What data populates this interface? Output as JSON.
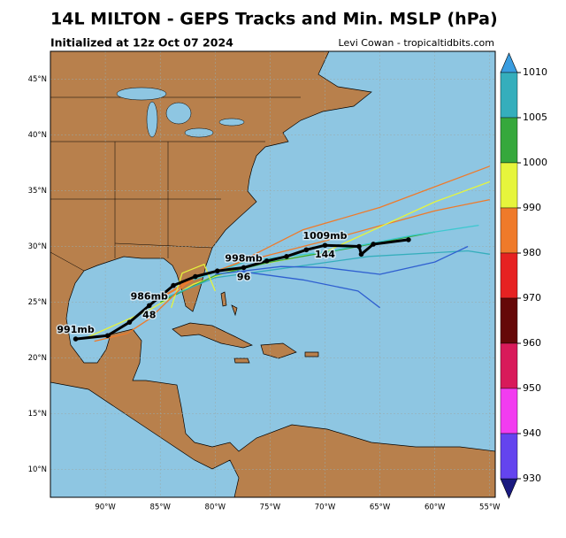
{
  "map": {
    "title": "14L MILTON - GEPS Tracks and Min. MSLP (hPa)",
    "subtitle": "Initialized at 12z Oct 07 2024",
    "credit": "Levi Cowan - tropicaltidbits.com",
    "lonlim": [
      -95,
      -54.5
    ],
    "latlim": [
      7.5,
      47.5
    ],
    "lat_ticks": [
      {
        "value": 10,
        "label": "10°N"
      },
      {
        "value": 15,
        "label": "15°N"
      },
      {
        "value": 20,
        "label": "20°N"
      },
      {
        "value": 25,
        "label": "25°N"
      },
      {
        "value": 30,
        "label": "30°N"
      },
      {
        "value": 35,
        "label": "35°N"
      },
      {
        "value": 40,
        "label": "40°N"
      },
      {
        "value": 45,
        "label": "45°N"
      }
    ],
    "lon_ticks": [
      {
        "value": -90,
        "label": "90°W"
      },
      {
        "value": -85,
        "label": "85°W"
      },
      {
        "value": -80,
        "label": "80°W"
      },
      {
        "value": -75,
        "label": "75°W"
      },
      {
        "value": -70,
        "label": "70°W"
      },
      {
        "value": -65,
        "label": "65°W"
      },
      {
        "value": -60,
        "label": "60°W"
      },
      {
        "value": -55,
        "label": "55°W"
      }
    ],
    "colorbar": {
      "ticks": [
        1010,
        1005,
        1000,
        990,
        980,
        970,
        960,
        950,
        940,
        930
      ],
      "band_colors": [
        "#35aebc",
        "#36a83c",
        "#e6f53c",
        "#ef7a2a",
        "#e62222",
        "#650808",
        "#d81a5a",
        "#f23cf0",
        "#6444ee"
      ]
    },
    "tracks": [
      {
        "color": "#ef7a2a",
        "lon": [
          -86,
          -82,
          -78,
          -72,
          -65,
          -55
        ],
        "lat": [
          24.8,
          27,
          28.5,
          31.5,
          33.5,
          37.2
        ]
      },
      {
        "color": "#ef7a2a",
        "lon": [
          -86,
          -82,
          -76,
          -70,
          -60,
          -55
        ],
        "lat": [
          24.8,
          27.2,
          29,
          30.5,
          33.2,
          34.2
        ]
      },
      {
        "color": "#e6f53c",
        "lon": [
          -92,
          -86,
          -82,
          -78,
          -70,
          -60,
          -55
        ],
        "lat": [
          21.7,
          24.3,
          26.6,
          28,
          29.5,
          34,
          35.8
        ]
      },
      {
        "color": "#36a83c",
        "lon": [
          -85,
          -80,
          -75,
          -68,
          -60
        ],
        "lat": [
          25,
          27.4,
          28.6,
          29.8,
          31.3
        ]
      },
      {
        "color": "#35aebc",
        "lon": [
          -85,
          -80,
          -74,
          -66,
          -57,
          -55
        ],
        "lat": [
          25.2,
          27.2,
          28,
          29.1,
          29.6,
          29.3
        ]
      },
      {
        "color": "#2f5fd0",
        "lon": [
          -80,
          -74,
          -70,
          -65,
          -60,
          -57
        ],
        "lat": [
          27.5,
          28.2,
          28.1,
          27.5,
          28.6,
          30
        ]
      },
      {
        "color": "#2f5fd0",
        "lon": [
          -78,
          -72,
          -67,
          -65
        ],
        "lat": [
          27.8,
          27,
          26,
          24.5
        ]
      },
      {
        "color": "#3ec8d0",
        "lon": [
          -82,
          -77,
          -70,
          -62,
          -56
        ],
        "lat": [
          27,
          28.7,
          29.5,
          31,
          31.9
        ]
      },
      {
        "color": "#e6f53c",
        "lon": [
          -84,
          -83,
          -81,
          -80
        ],
        "lat": [
          24.5,
          27.6,
          28.4,
          26
        ]
      },
      {
        "color": "#ef7a2a",
        "lon": [
          -91,
          -88,
          -86,
          -84,
          -82
        ],
        "lat": [
          21.5,
          22.2,
          23.5,
          25.4,
          27.3
        ]
      }
    ],
    "mean_track": {
      "lon": [
        -92.7,
        -89.8,
        -87.8,
        -86,
        -83.8,
        -81.8,
        -79.8,
        -77.4,
        -75.3,
        -73.5,
        -71.7,
        -70,
        -66.9,
        -66.7,
        -65.6,
        -62.4
      ],
      "lat": [
        21.7,
        22,
        23.2,
        24.7,
        26.5,
        27.3,
        27.8,
        28.1,
        28.7,
        29.1,
        29.7,
        30.1,
        30,
        29.3,
        30.2,
        30.6
      ],
      "pressure_labels": [
        "991mb",
        null,
        null,
        "986mb",
        null,
        null,
        null,
        "998mb",
        null,
        null,
        null,
        "1009mb",
        null,
        null,
        null,
        null
      ],
      "hour_labels": [
        null,
        null,
        null,
        "48",
        null,
        null,
        null,
        "96",
        null,
        null,
        null,
        "144",
        null,
        null,
        null,
        null
      ]
    }
  }
}
